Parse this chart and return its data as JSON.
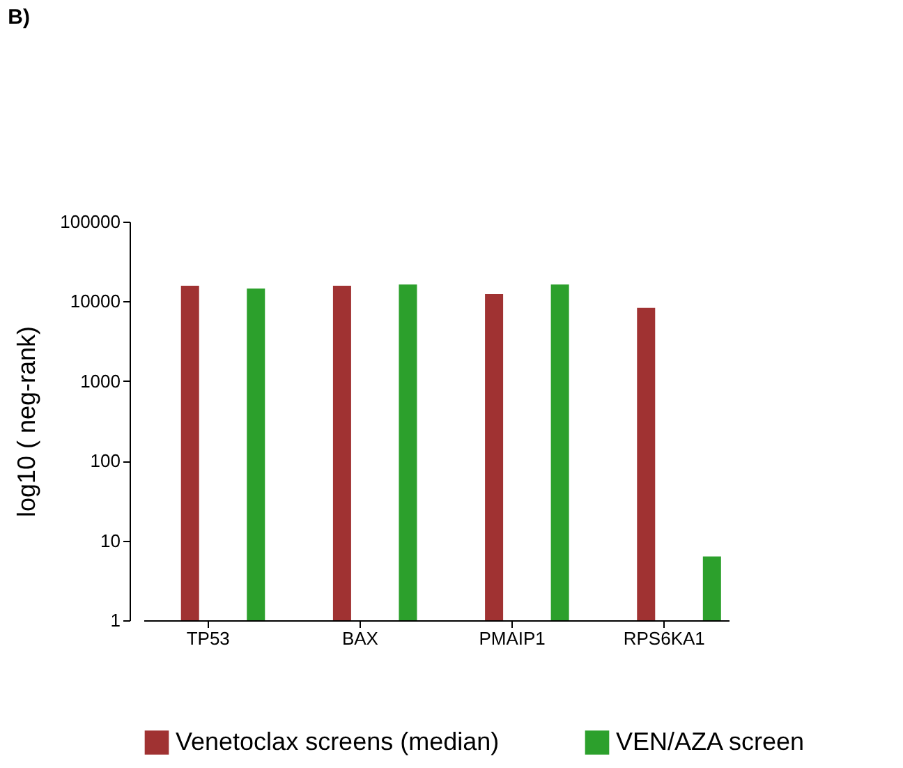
{
  "chart_data": {
    "type": "bar",
    "title": "B)",
    "ylabel": "log10 ( neg-rank)",
    "categories": [
      "TP53",
      "BAX",
      "PMAIP1",
      "RPS6KA1"
    ],
    "series": [
      {
        "name": "Venetoclax screens (median)",
        "color": "#a03232",
        "values": [
          15700,
          15700,
          12300,
          8300
        ]
      },
      {
        "name": "VEN/AZA screen",
        "color": "#2ca02c",
        "values": [
          14500,
          16300,
          16300,
          6.3
        ]
      }
    ],
    "log": true,
    "ylim": [
      1,
      100000
    ],
    "yticks": [
      1,
      10,
      100,
      1000,
      10000,
      100000
    ],
    "grid": false,
    "legend": "bottom"
  }
}
